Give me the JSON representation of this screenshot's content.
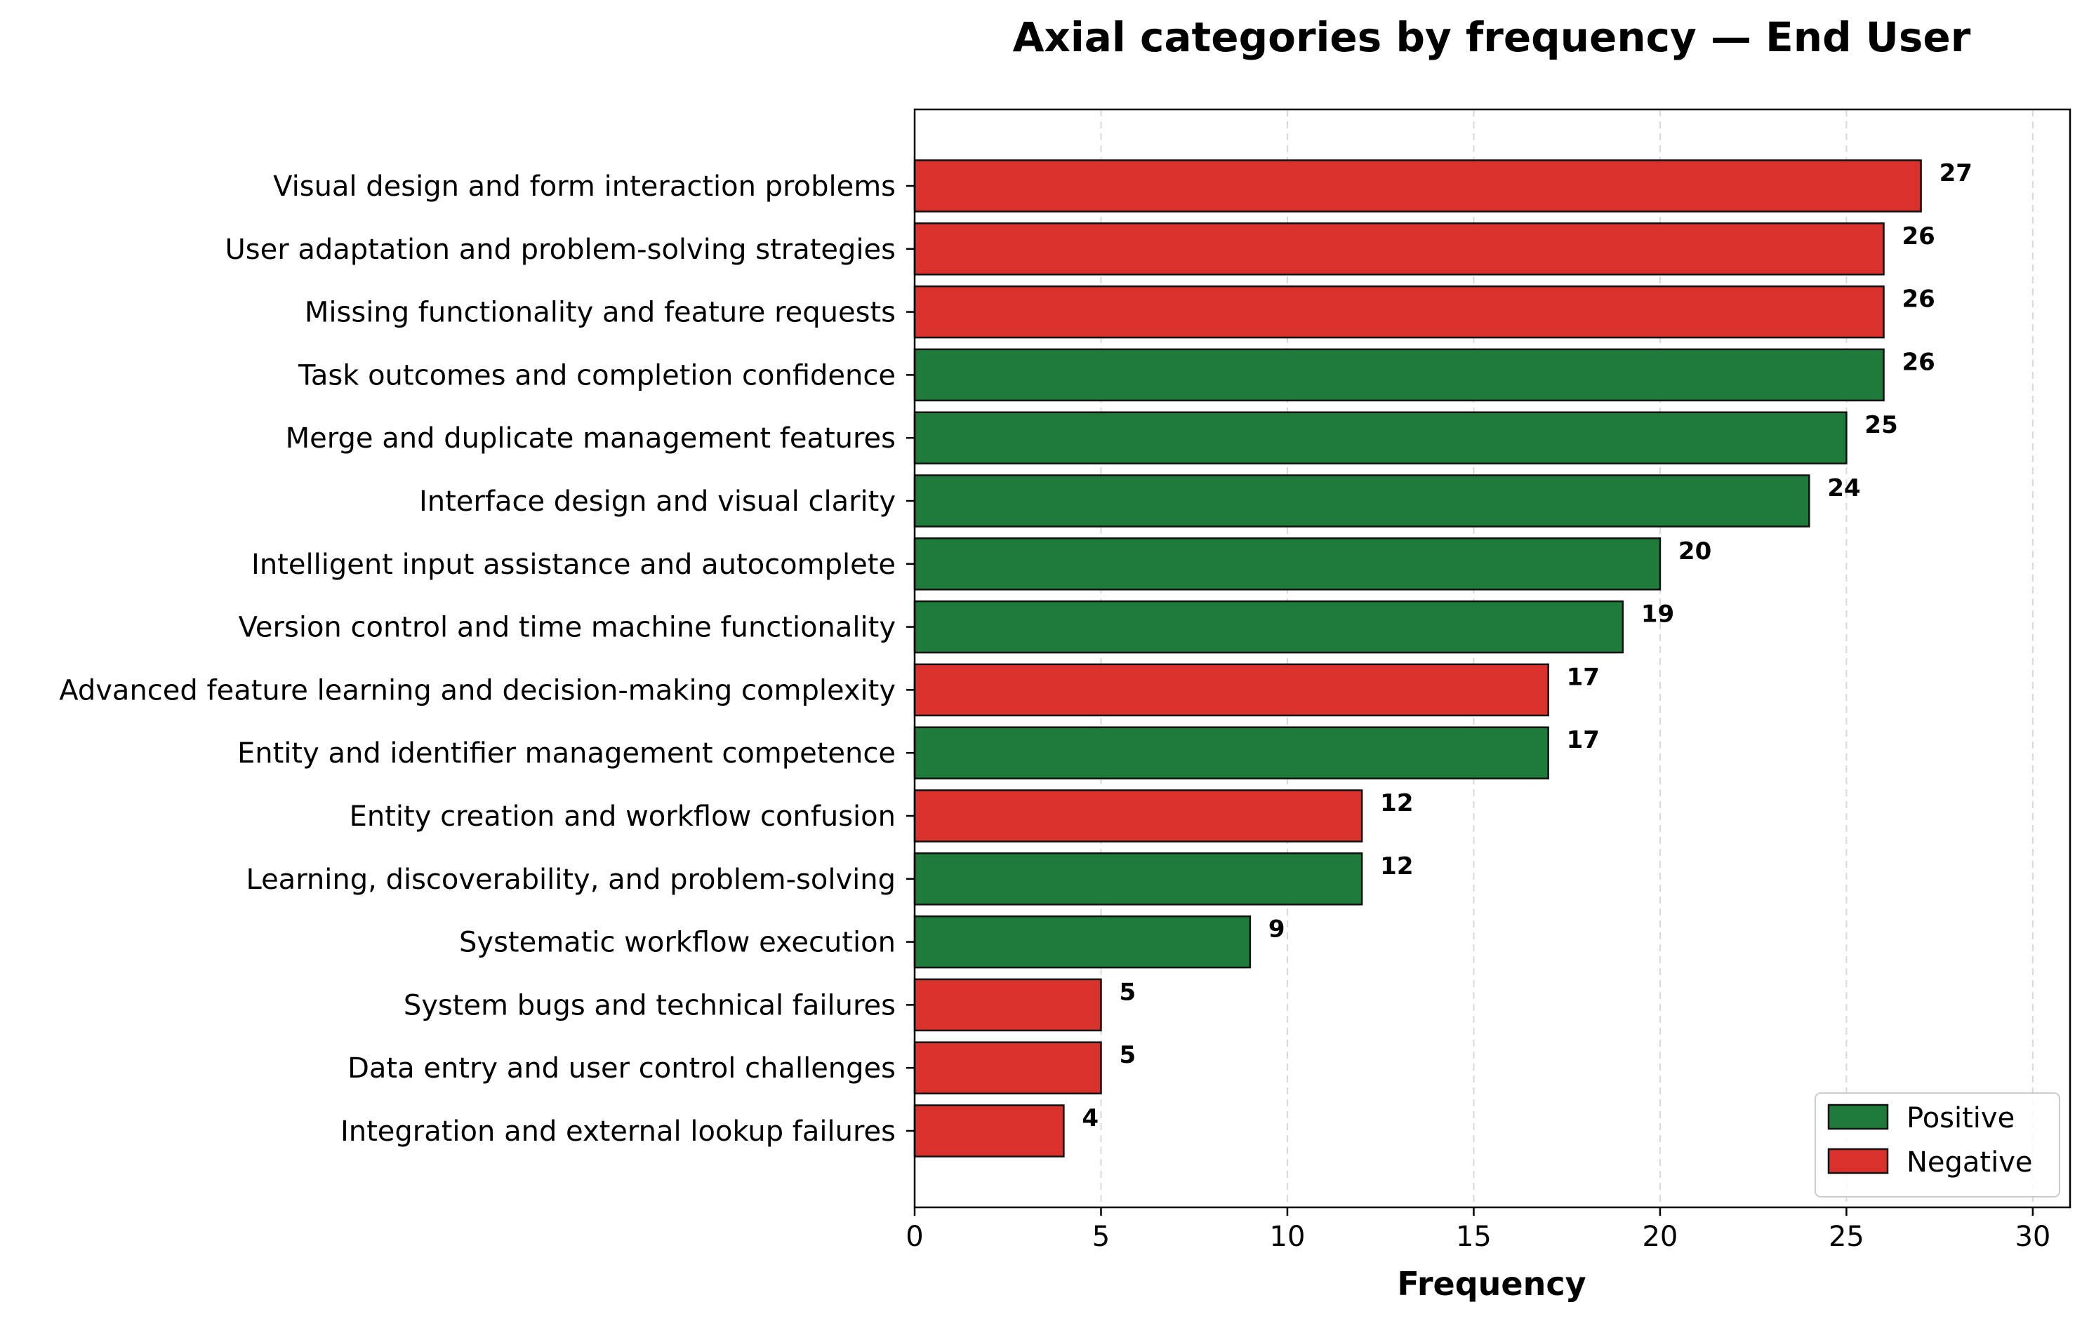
{
  "chart_data": {
    "type": "bar",
    "orientation": "horizontal",
    "title": "Axial categories by frequency — End User",
    "xlabel": "Frequency",
    "ylabel": "",
    "xlim": [
      0,
      31
    ],
    "xticks": [
      0,
      5,
      10,
      15,
      20,
      25,
      30
    ],
    "grid": "vertical dashed",
    "legend_position": "bottom-right",
    "colors": {
      "Positive": "#1e7b39",
      "Negative": "#d9312b"
    },
    "legend": [
      {
        "label": "Positive",
        "sentiment": "Positive"
      },
      {
        "label": "Negative",
        "sentiment": "Negative"
      }
    ],
    "categories": [
      "Visual design and form interaction problems",
      "User adaptation and problem-solving strategies",
      "Missing functionality and feature requests",
      "Task outcomes and completion confidence",
      "Merge and duplicate management features",
      "Interface design and visual clarity",
      "Intelligent input assistance and autocomplete",
      "Version control and time machine functionality",
      "Advanced feature learning and decision-making complexity",
      "Entity and identifier management competence",
      "Entity creation and workflow confusion",
      "Learning, discoverability, and problem-solving",
      "Systematic workflow execution",
      "System bugs and technical failures",
      "Data entry and user control challenges",
      "Integration and external lookup failures"
    ],
    "values": [
      27,
      26,
      26,
      26,
      25,
      24,
      20,
      19,
      17,
      17,
      12,
      12,
      9,
      5,
      5,
      4
    ],
    "sentiments": [
      "Negative",
      "Negative",
      "Negative",
      "Positive",
      "Positive",
      "Positive",
      "Positive",
      "Positive",
      "Negative",
      "Positive",
      "Negative",
      "Positive",
      "Positive",
      "Negative",
      "Negative",
      "Negative"
    ]
  }
}
